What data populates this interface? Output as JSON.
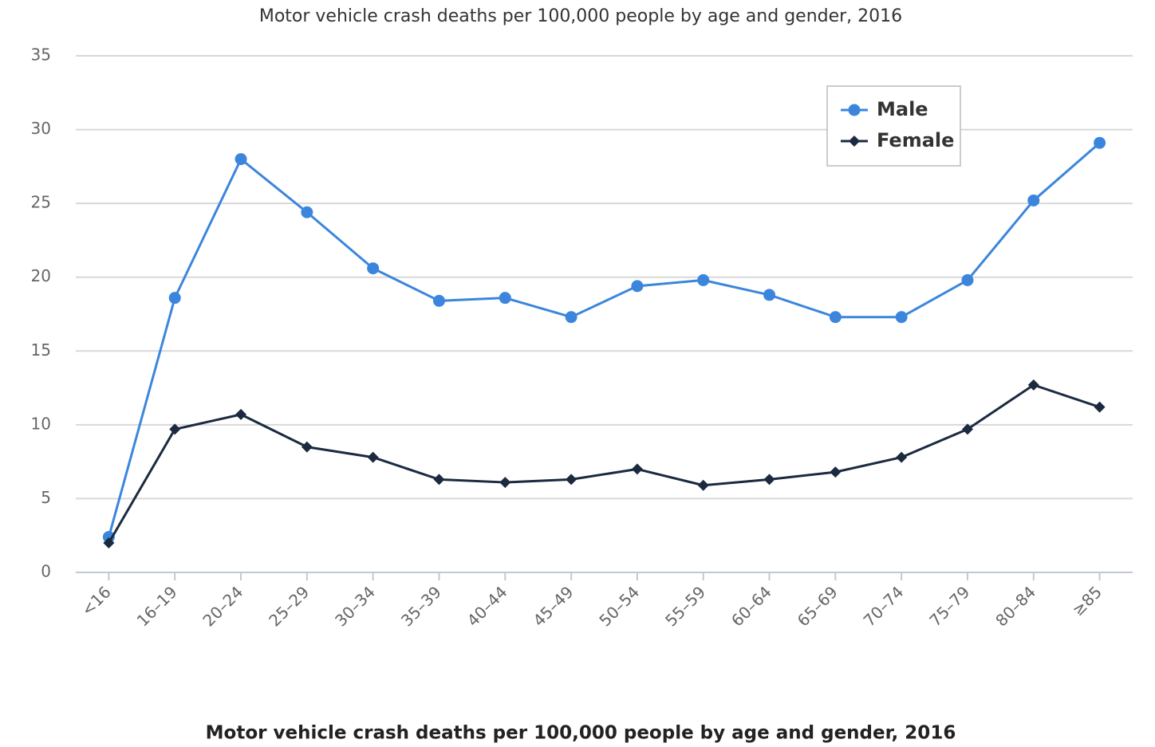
{
  "chart_data": {
    "type": "line",
    "title": "Motor vehicle crash deaths per 100,000 people by age and gender, 2016",
    "caption": "Motor vehicle crash deaths per 100,000 people by age and gender, 2016",
    "categories": [
      "<16",
      "16–19",
      "20–24",
      "25–29",
      "30–34",
      "35–39",
      "40–44",
      "45–49",
      "50–54",
      "55–59",
      "60–64",
      "65–69",
      "70–74",
      "75–79",
      "80–84",
      "≥85"
    ],
    "series": [
      {
        "name": "Male",
        "color": "#3b86dc",
        "marker": "circle",
        "values": [
          2.4,
          18.6,
          28.0,
          24.4,
          20.6,
          18.4,
          18.6,
          17.3,
          19.4,
          19.8,
          18.8,
          17.3,
          17.3,
          19.8,
          25.2,
          29.1
        ]
      },
      {
        "name": "Female",
        "color": "#1b2a3f",
        "marker": "diamond",
        "values": [
          2.0,
          9.7,
          10.7,
          8.5,
          7.8,
          6.3,
          6.1,
          6.3,
          7.0,
          5.9,
          6.3,
          6.8,
          7.8,
          9.7,
          12.7,
          11.2
        ]
      }
    ],
    "ylim": [
      0,
      35
    ],
    "yticks": [
      0,
      5,
      10,
      15,
      20,
      25,
      30,
      35
    ],
    "grid": true,
    "legend": "upper right"
  }
}
